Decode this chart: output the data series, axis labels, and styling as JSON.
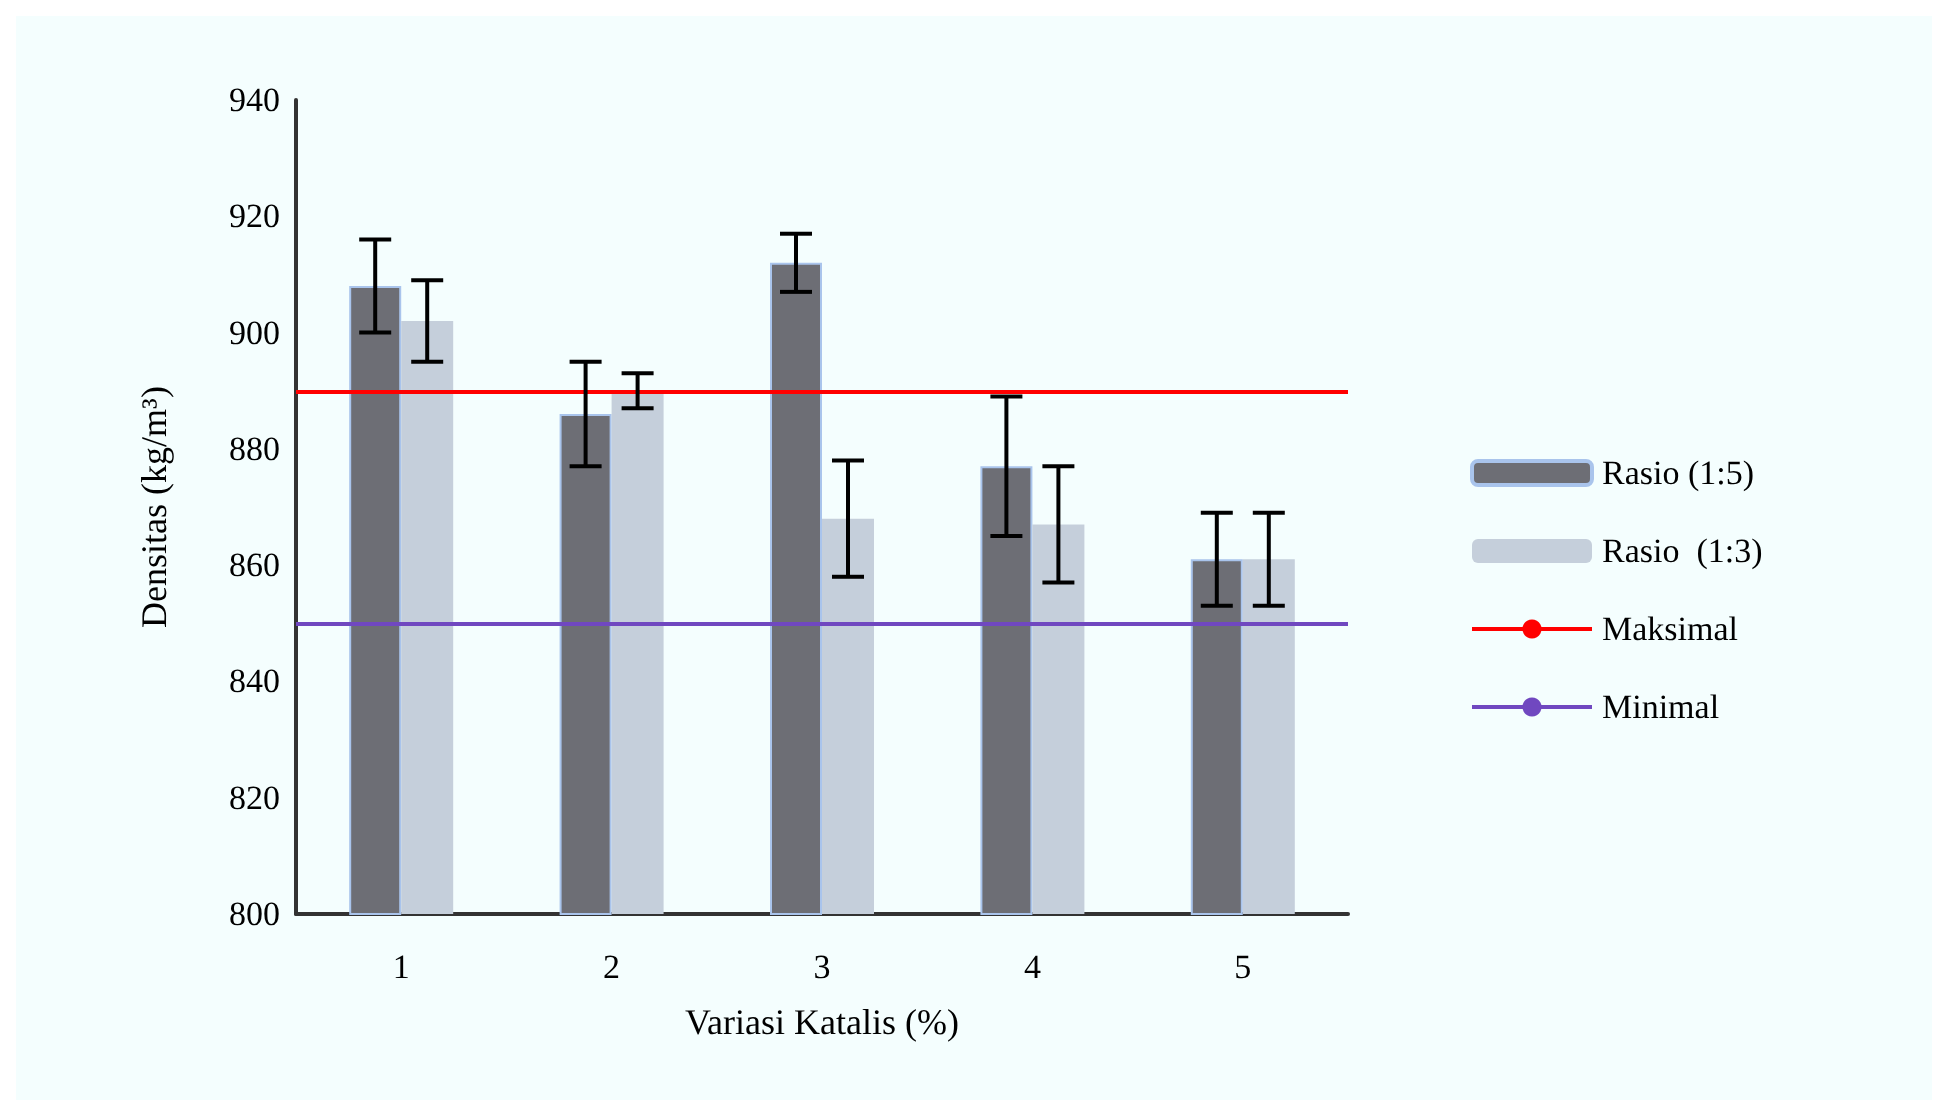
{
  "chart_data": {
    "type": "bar",
    "xlabel": "Variasi Katalis (%)",
    "ylabel": "Densitas (kg/m³)",
    "categories": [
      "1",
      "2",
      "3",
      "4",
      "5"
    ],
    "series": [
      {
        "name": "Rasio (1:5)",
        "color": "#6d6e75",
        "values": [
          908,
          886,
          912,
          877,
          861
        ],
        "errors": [
          8,
          9,
          5,
          12,
          8
        ]
      },
      {
        "name": "Rasio  (1:3)",
        "color": "#c5cfdb",
        "values": [
          902,
          890,
          868,
          867,
          861
        ],
        "errors": [
          7,
          3,
          10,
          10,
          8
        ]
      }
    ],
    "ylim": [
      800,
      940
    ],
    "yticks": [
      800,
      820,
      840,
      860,
      880,
      900,
      920,
      940
    ],
    "ref_lines": [
      {
        "axis": "y",
        "value": 890,
        "label": "Maksimal",
        "color": "#ff0000"
      },
      {
        "axis": "y",
        "value": 850,
        "label": "Minimal",
        "color": "#7048c0"
      }
    ],
    "grid": false,
    "legend": "right"
  }
}
